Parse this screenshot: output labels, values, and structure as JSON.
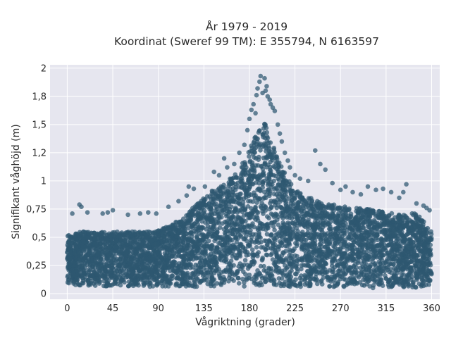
{
  "chart_data": {
    "type": "scatter",
    "title": "År 1979 - 2019",
    "subtitle": "Koordinat (Sweref 99 TM): E 355794, N 6163597",
    "xlabel": "Vågriktning (grader)",
    "ylabel": "Signifikant våghöjd (m)",
    "xlim": [
      -17,
      368
    ],
    "ylim": [
      -0.05,
      2.03
    ],
    "x_ticks": [
      0,
      45,
      90,
      135,
      180,
      225,
      270,
      315,
      360
    ],
    "x_tick_labels": [
      "0",
      "45",
      "90",
      "135",
      "180",
      "225",
      "270",
      "315",
      "360"
    ],
    "y_ticks": [
      0,
      0.25,
      0.5,
      0.75,
      1,
      1.25,
      1.5,
      1.75,
      2
    ],
    "y_tick_labels": [
      "0",
      "0,25",
      "0,5",
      "0,75",
      "1",
      "1,2",
      "1,5",
      "1,8",
      "2"
    ],
    "grid": true,
    "point_color": "#2e5770",
    "point_opacity": 0.72,
    "envelope": {
      "x": [
        0,
        15,
        30,
        45,
        60,
        75,
        90,
        105,
        120,
        135,
        150,
        165,
        175,
        185,
        195,
        205,
        215,
        225,
        240,
        255,
        270,
        285,
        300,
        315,
        330,
        345,
        360
      ],
      "upper": [
        0.52,
        0.55,
        0.55,
        0.55,
        0.55,
        0.55,
        0.56,
        0.62,
        0.72,
        0.87,
        0.95,
        1.05,
        1.18,
        1.38,
        1.52,
        1.28,
        1.07,
        0.92,
        0.85,
        0.8,
        0.78,
        0.76,
        0.75,
        0.72,
        0.7,
        0.72,
        0.55
      ],
      "lower": [
        0.08,
        0.07,
        0.07,
        0.06,
        0.06,
        0.06,
        0.06,
        0.06,
        0.06,
        0.06,
        0.06,
        0.06,
        0.06,
        0.06,
        0.06,
        0.06,
        0.06,
        0.06,
        0.06,
        0.06,
        0.06,
        0.06,
        0.05,
        0.05,
        0.05,
        0.05,
        0.08
      ]
    },
    "outliers": [
      [
        5,
        0.71
      ],
      [
        12,
        0.79
      ],
      [
        14,
        0.77
      ],
      [
        20,
        0.72
      ],
      [
        35,
        0.71
      ],
      [
        40,
        0.72
      ],
      [
        45,
        0.74
      ],
      [
        60,
        0.7
      ],
      [
        72,
        0.71
      ],
      [
        80,
        0.72
      ],
      [
        88,
        0.71
      ],
      [
        100,
        0.77
      ],
      [
        110,
        0.82
      ],
      [
        118,
        0.87
      ],
      [
        120,
        0.95
      ],
      [
        125,
        0.93
      ],
      [
        136,
        0.95
      ],
      [
        145,
        1.08
      ],
      [
        150,
        1.05
      ],
      [
        155,
        1.2
      ],
      [
        158,
        1.12
      ],
      [
        165,
        1.15
      ],
      [
        170,
        1.25
      ],
      [
        175,
        1.32
      ],
      [
        178,
        1.45
      ],
      [
        180,
        1.55
      ],
      [
        182,
        1.63
      ],
      [
        184,
        1.68
      ],
      [
        186,
        1.6
      ],
      [
        187,
        1.76
      ],
      [
        188,
        1.82
      ],
      [
        190,
        1.88
      ],
      [
        191,
        1.93
      ],
      [
        193,
        1.78
      ],
      [
        195,
        1.91
      ],
      [
        196,
        1.8
      ],
      [
        197,
        1.84
      ],
      [
        198,
        1.75
      ],
      [
        200,
        1.72
      ],
      [
        201,
        1.68
      ],
      [
        203,
        1.65
      ],
      [
        205,
        1.62
      ],
      [
        208,
        1.5
      ],
      [
        210,
        1.42
      ],
      [
        212,
        1.35
      ],
      [
        215,
        1.25
      ],
      [
        218,
        1.18
      ],
      [
        220,
        1.12
      ],
      [
        225,
        1.05
      ],
      [
        230,
        1.02
      ],
      [
        238,
        1.0
      ],
      [
        245,
        1.27
      ],
      [
        250,
        1.15
      ],
      [
        255,
        1.1
      ],
      [
        262,
        0.98
      ],
      [
        270,
        0.92
      ],
      [
        275,
        0.95
      ],
      [
        282,
        0.9
      ],
      [
        290,
        0.88
      ],
      [
        297,
        0.95
      ],
      [
        305,
        0.92
      ],
      [
        312,
        0.93
      ],
      [
        320,
        0.9
      ],
      [
        328,
        0.85
      ],
      [
        332,
        0.9
      ],
      [
        335,
        0.97
      ],
      [
        345,
        0.8
      ],
      [
        352,
        0.78
      ],
      [
        355,
        0.76
      ],
      [
        358,
        0.74
      ]
    ]
  }
}
